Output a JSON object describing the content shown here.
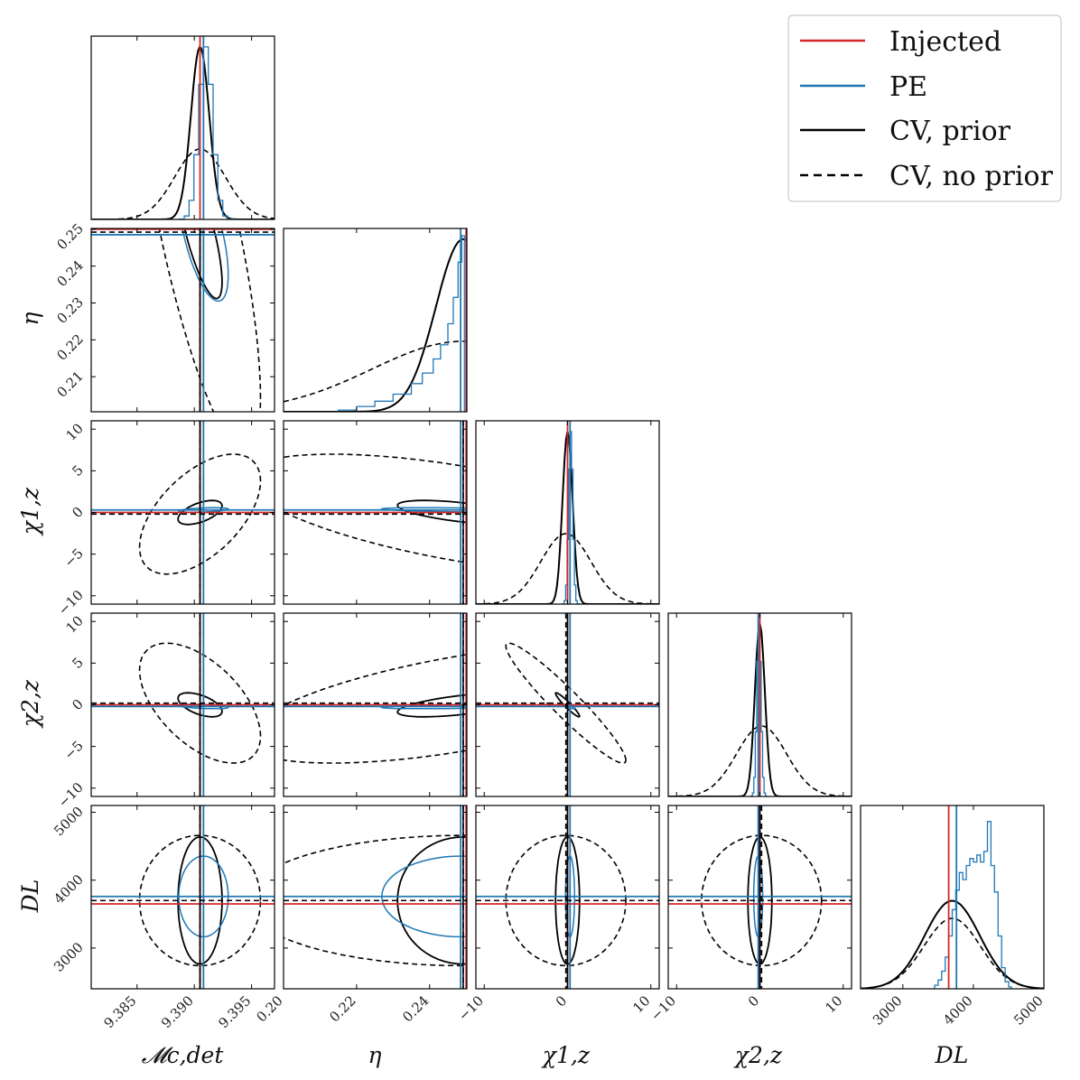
{
  "chart_data": {
    "type": "corner",
    "colors": {
      "injected": "#d62728",
      "pe": "#1f77b4",
      "cv": "#000000"
    },
    "legend": {
      "position": "top-right",
      "entries": [
        {
          "key": "injected",
          "label": "Injected",
          "style": "solid"
        },
        {
          "key": "pe",
          "label": "PE",
          "style": "solid"
        },
        {
          "key": "cv_prior",
          "label": "CV, prior",
          "style": "solid"
        },
        {
          "key": "cv_noprior",
          "label": "CV, no prior",
          "style": "dashed"
        }
      ]
    },
    "params": [
      {
        "id": "mc",
        "label": "𝓜c,det",
        "range": [
          9.381,
          9.397
        ],
        "ticks": [
          9.385,
          9.39,
          9.395
        ],
        "tick_labels": [
          "9.385",
          "9.390",
          "9.395"
        ],
        "injected": 9.3905,
        "pe": 9.3908,
        "cv_prior_mean": 9.3905,
        "cv_prior_sd": 0.0008,
        "cv_noprior_mean": 9.3905,
        "cv_noprior_sd": 0.0022
      },
      {
        "id": "eta",
        "label": "η",
        "range": [
          0.2,
          0.2502
        ],
        "ticks": [
          0.2,
          0.22,
          0.24
        ],
        "tick_labels": [
          "0.20",
          "0.22",
          "0.24"
        ],
        "y_ticks": [
          0.21,
          0.22,
          0.23,
          0.24,
          0.25
        ],
        "y_tick_labels": [
          "0.21",
          "0.22",
          "0.23",
          "0.24",
          "0.25"
        ],
        "y_range": [
          0.2005,
          0.2502
        ],
        "injected": 0.25,
        "pe": 0.2485,
        "cv_prior_mean": 0.2492,
        "cv_prior_sd": 0.0075,
        "cv_noprior_mean": 0.2492,
        "cv_noprior_sd": 0.025
      },
      {
        "id": "chi1",
        "label": "χ1,z",
        "range": [
          -11,
          11
        ],
        "ticks": [
          -10,
          0,
          10
        ],
        "tick_labels": [
          "−10",
          "0",
          "10"
        ],
        "y_ticks": [
          -10,
          -5,
          0,
          5,
          10
        ],
        "y_tick_labels": [
          "−10",
          "−5",
          "0",
          "5",
          "10"
        ],
        "injected": 0.0,
        "pe": 0.3,
        "cv_prior_mean": 0.0,
        "cv_prior_sd": 0.6,
        "cv_noprior_mean": -0.2,
        "cv_noprior_sd": 3.0
      },
      {
        "id": "chi2",
        "label": "χ2,z",
        "range": [
          -11,
          11
        ],
        "ticks": [
          -10,
          0,
          10
        ],
        "tick_labels": [
          "−10",
          "0",
          "10"
        ],
        "y_ticks": [
          -10,
          -5,
          0,
          5,
          10
        ],
        "y_tick_labels": [
          "−10",
          "−5",
          "0",
          "5",
          "10"
        ],
        "injected": 0.0,
        "pe": -0.2,
        "cv_prior_mean": 0.0,
        "cv_prior_sd": 0.6,
        "cv_noprior_mean": 0.2,
        "cv_noprior_sd": 3.0
      },
      {
        "id": "dl",
        "label": "DL",
        "range": [
          2400,
          5000
        ],
        "ticks": [
          3000,
          4000,
          5000
        ],
        "tick_labels": [
          "3000",
          "4000",
          "5000"
        ],
        "y_ticks": [
          3000,
          4000,
          5000
        ],
        "y_tick_labels": [
          "3000",
          "4000",
          "5000"
        ],
        "y_range": [
          2400,
          5100
        ],
        "injected": 3650,
        "pe": 3760,
        "cv_prior_mean": 3700,
        "cv_prior_sd": 390,
        "cv_noprior_mean": 3700,
        "cv_noprior_sd": 400
      }
    ],
    "pe_hist_dl": [
      {
        "x": 3450,
        "h": 0.02
      },
      {
        "x": 3500,
        "h": 0.05
      },
      {
        "x": 3550,
        "h": 0.1
      },
      {
        "x": 3600,
        "h": 0.18
      },
      {
        "x": 3650,
        "h": 0.3
      },
      {
        "x": 3700,
        "h": 0.45
      },
      {
        "x": 3750,
        "h": 0.56
      },
      {
        "x": 3800,
        "h": 0.66
      },
      {
        "x": 3850,
        "h": 0.62
      },
      {
        "x": 3900,
        "h": 0.7
      },
      {
        "x": 3950,
        "h": 0.74
      },
      {
        "x": 4000,
        "h": 0.72
      },
      {
        "x": 4050,
        "h": 0.76
      },
      {
        "x": 4100,
        "h": 0.72
      },
      {
        "x": 4150,
        "h": 0.78
      },
      {
        "x": 4200,
        "h": 0.95
      },
      {
        "x": 4250,
        "h": 0.7
      },
      {
        "x": 4300,
        "h": 0.55
      },
      {
        "x": 4350,
        "h": 0.3
      },
      {
        "x": 4400,
        "h": 0.12
      },
      {
        "x": 4450,
        "h": 0.04
      },
      {
        "x": 4500,
        "h": 0.01
      }
    ],
    "pe_hist_eta": [
      {
        "x": 0.215,
        "h": 0.01
      },
      {
        "x": 0.22,
        "h": 0.03
      },
      {
        "x": 0.225,
        "h": 0.06
      },
      {
        "x": 0.23,
        "h": 0.1
      },
      {
        "x": 0.235,
        "h": 0.16
      },
      {
        "x": 0.238,
        "h": 0.22
      },
      {
        "x": 0.241,
        "h": 0.3
      },
      {
        "x": 0.243,
        "h": 0.38
      },
      {
        "x": 0.245,
        "h": 0.5
      },
      {
        "x": 0.2465,
        "h": 0.65
      },
      {
        "x": 0.2478,
        "h": 0.85
      },
      {
        "x": 0.2488,
        "h": 1.0
      }
    ]
  }
}
